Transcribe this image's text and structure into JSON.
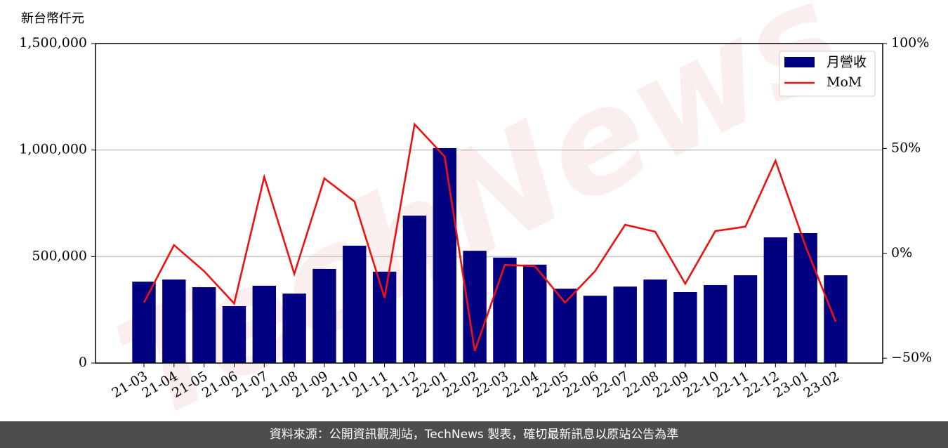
{
  "chart_data": {
    "type": "bar",
    "y_label": "新台幣仟元",
    "watermark": "TechNews",
    "footer": "資料來源：公開資訊觀測站，TechNews 製表，確切最新訊息以原站公告為準",
    "categories": [
      "21-03",
      "21-04",
      "21-05",
      "21-06",
      "21-07",
      "21-08",
      "21-09",
      "21-10",
      "21-11",
      "21-12",
      "22-01",
      "22-02",
      "22-03",
      "22-04",
      "22-05",
      "22-06",
      "22-07",
      "22-08",
      "22-09",
      "22-10",
      "22-11",
      "22-12",
      "23-01",
      "23-02"
    ],
    "series": [
      {
        "name": "月營收",
        "type": "bar",
        "color": "#000080",
        "values": [
          382000,
          392000,
          356000,
          267000,
          363000,
          326000,
          442000,
          551000,
          429000,
          692000,
          1009000,
          527000,
          495000,
          462000,
          349000,
          316000,
          359000,
          392000,
          333000,
          366000,
          412000,
          590000,
          610000,
          412000
        ]
      },
      {
        "name": "MoM",
        "type": "line",
        "axis": "y2",
        "color": "#ee1111",
        "values": [
          -23.5,
          3.9,
          -8.5,
          -23.9,
          36.4,
          -9.8,
          35.7,
          24.7,
          -21.2,
          61.5,
          46.1,
          -46.6,
          -5.5,
          -6.1,
          -23.5,
          -8.5,
          13.6,
          10.3,
          -14.5,
          10.6,
          12.7,
          44.1,
          3.4,
          -32.5
        ]
      }
    ],
    "ylim": [
      0,
      1500000
    ],
    "yticks": [
      0,
      {
        "value": 500000,
        "label": "500,000"
      },
      {
        "value": 1000000,
        "label": "1,000,000"
      },
      {
        "value": 1500000,
        "label": "1,500,000"
      }
    ],
    "y2lim": [
      -52.3,
      100
    ],
    "y2ticks": [
      {
        "value": -50,
        "label": "−50%"
      },
      {
        "value": 0,
        "label": "0%"
      },
      {
        "value": 50,
        "label": "50%"
      },
      {
        "value": 100,
        "label": "100%"
      }
    ],
    "grid": true,
    "legend": "upper right"
  }
}
